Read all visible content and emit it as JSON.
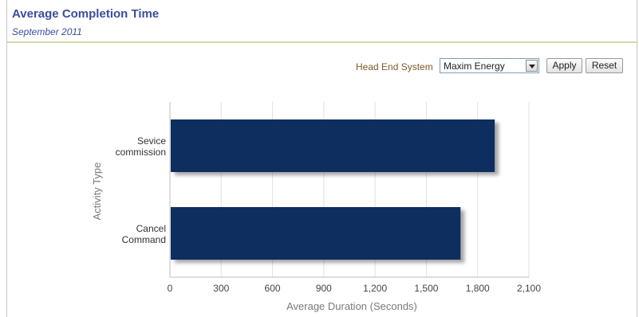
{
  "report": {
    "title": "Average Completion Time",
    "subtitle": "September 2011"
  },
  "filter": {
    "label": "Head End System",
    "selected": "Maxim Energy",
    "apply_label": "Apply",
    "reset_label": "Reset"
  },
  "chart_data": {
    "type": "bar",
    "orientation": "horizontal",
    "categories": [
      "Sevice commission",
      "Cancel Command"
    ],
    "values": [
      1900,
      1700
    ],
    "xlabel": "Average Duration (Seconds)",
    "ylabel": "Activity Type",
    "xlim": [
      0,
      2100
    ],
    "ticks": [
      0,
      300,
      600,
      900,
      1200,
      1500,
      1800,
      2100
    ],
    "tick_labels": [
      "0",
      "300",
      "600",
      "900",
      "1,200",
      "1,500",
      "1,800",
      "2,100"
    ],
    "grid": true,
    "bar_color": "#0f2d5e"
  }
}
